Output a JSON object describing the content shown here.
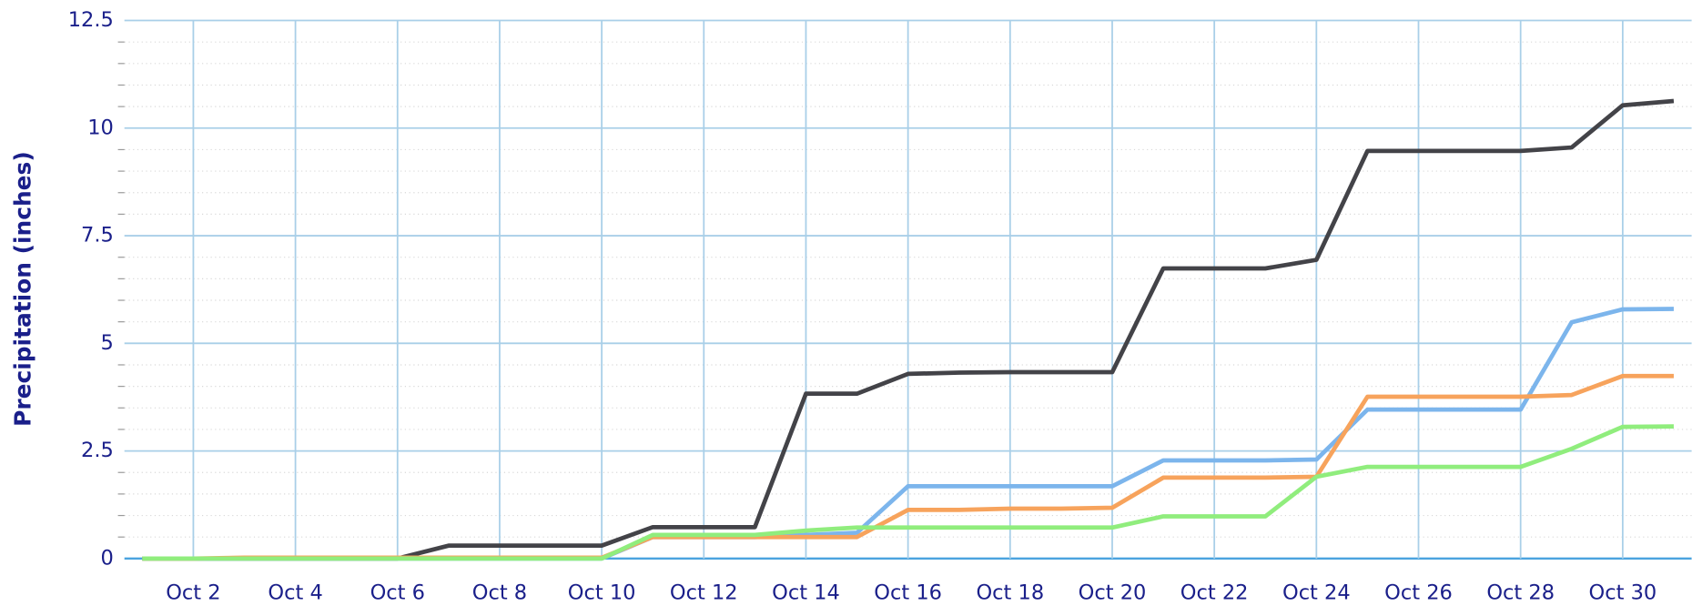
{
  "chart_data": {
    "type": "line",
    "y_label": "Precipitation (inches)",
    "categories": [
      null,
      "Oct 2",
      null,
      "Oct 4",
      null,
      "Oct 6",
      null,
      "Oct 8",
      null,
      "Oct 10",
      null,
      "Oct 12",
      null,
      "Oct 14",
      null,
      "Oct 16",
      null,
      "Oct 18",
      null,
      "Oct 20",
      null,
      "Oct 22",
      null,
      "Oct 24",
      null,
      "Oct 26",
      null,
      "Oct 28",
      null,
      "Oct 30",
      null
    ],
    "series": [
      {
        "color": "#434348",
        "values": [
          0,
          0,
          0,
          0,
          0,
          0,
          0.3,
          0.3,
          0.3,
          0.3,
          0.73,
          0.73,
          0.73,
          3.83,
          3.83,
          4.29,
          4.32,
          4.33,
          4.33,
          4.33,
          6.74,
          6.74,
          6.74,
          6.94,
          9.47,
          9.47,
          9.47,
          9.47,
          9.55,
          10.53,
          10.63
        ]
      },
      {
        "color": "#7cb5ec",
        "values": [
          0,
          0,
          0,
          0,
          0,
          0,
          0,
          0,
          0,
          0,
          0.5,
          0.5,
          0.5,
          0.55,
          0.6,
          1.68,
          1.68,
          1.68,
          1.68,
          1.68,
          2.28,
          2.28,
          2.28,
          2.3,
          3.46,
          3.46,
          3.46,
          3.46,
          5.49,
          5.79,
          5.8
        ]
      },
      {
        "color": "#f7a35c",
        "values": [
          0,
          0,
          0.02,
          0.02,
          0.02,
          0.02,
          0.02,
          0.02,
          0.02,
          0.02,
          0.5,
          0.5,
          0.5,
          0.5,
          0.5,
          1.13,
          1.13,
          1.16,
          1.16,
          1.18,
          1.88,
          1.88,
          1.88,
          1.9,
          3.76,
          3.76,
          3.76,
          3.76,
          3.8,
          4.24,
          4.24
        ]
      },
      {
        "color": "#90ed7d",
        "values": [
          0,
          0,
          0,
          0,
          0,
          0,
          0,
          0,
          0,
          0,
          0.55,
          0.55,
          0.55,
          0.65,
          0.72,
          0.72,
          0.72,
          0.72,
          0.72,
          0.72,
          0.98,
          0.98,
          0.98,
          1.9,
          2.13,
          2.13,
          2.13,
          2.13,
          2.55,
          3.06,
          3.07
        ]
      }
    ],
    "ylim": [
      0,
      12.5
    ],
    "yticks": [
      0,
      2.5,
      5,
      7.5,
      10,
      12.5
    ],
    "grid": true
  }
}
